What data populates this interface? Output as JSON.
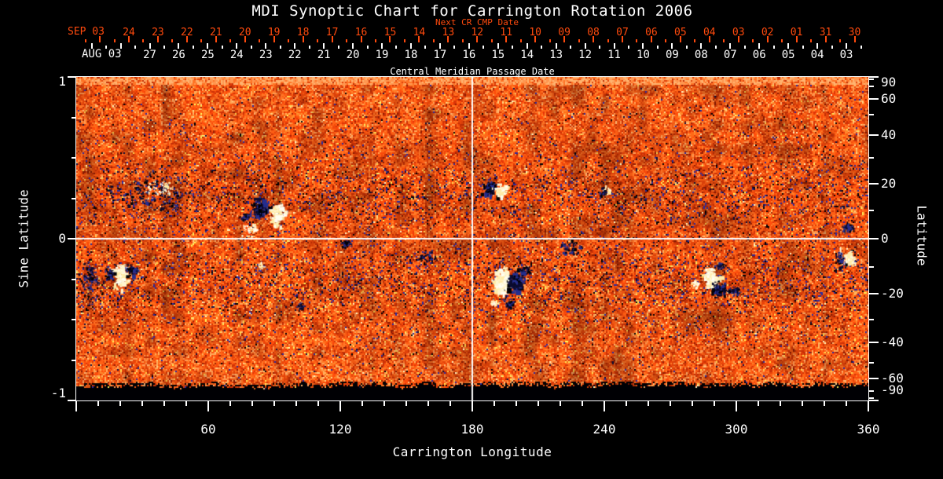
{
  "title": "MDI Synoptic Chart for Carrington Rotation 2006",
  "colors": {
    "background": "#000000",
    "frame": "#ffffff",
    "text": "#ffffff",
    "next_cr_axis": "#ff4a0d",
    "crosshair": "#ffffff"
  },
  "top_axis_next_cr": {
    "title": "Next CR CMP Date",
    "month_label": "SEP 03",
    "days": [
      "24",
      "23",
      "22",
      "21",
      "20",
      "19",
      "18",
      "17",
      "16",
      "15",
      "14",
      "13",
      "12",
      "11",
      "10",
      "09",
      "08",
      "07",
      "06",
      "05",
      "04",
      "03",
      "02",
      "01",
      "31",
      "30"
    ]
  },
  "top_axis_cmp": {
    "title": "Central Meridian Passage Date",
    "month_label": "AUG 03",
    "days": [
      "27",
      "26",
      "25",
      "24",
      "23",
      "22",
      "21",
      "20",
      "19",
      "18",
      "17",
      "16",
      "15",
      "14",
      "13",
      "12",
      "11",
      "10",
      "09",
      "08",
      "07",
      "06",
      "05",
      "04",
      "03"
    ]
  },
  "left_axis": {
    "label": "Sine Latitude",
    "labeled_ticks": [
      {
        "value": 1,
        "label": "1"
      },
      {
        "value": 0,
        "label": "0"
      },
      {
        "value": -1,
        "label": "-1"
      }
    ],
    "minor_tick_values": [
      0.75,
      0.5,
      0.25,
      -0.25,
      -0.5,
      -0.75
    ]
  },
  "right_axis": {
    "label": "Latitude",
    "labeled_ticks": [
      {
        "value": 90,
        "label": "90"
      },
      {
        "value": 60,
        "label": "60"
      },
      {
        "value": 40,
        "label": "40"
      },
      {
        "value": 20,
        "label": "20"
      },
      {
        "value": 0,
        "label": "0"
      },
      {
        "value": -20,
        "label": "-20"
      },
      {
        "value": -40,
        "label": "-40"
      },
      {
        "value": -60,
        "label": "-60"
      },
      {
        "value": -90,
        "label": "-90"
      }
    ],
    "minor_tick_values": [
      80,
      70,
      50,
      30,
      10,
      -10,
      -30,
      -50,
      -70,
      -80
    ]
  },
  "bottom_axis": {
    "label": "Carrington Longitude",
    "labeled_ticks": [
      {
        "value": 60,
        "label": "60"
      },
      {
        "value": 120,
        "label": "120"
      },
      {
        "value": 180,
        "label": "180"
      },
      {
        "value": 240,
        "label": "240"
      },
      {
        "value": 300,
        "label": "300"
      },
      {
        "value": 360,
        "label": "360"
      }
    ],
    "major_tick_step": 60,
    "minor_tick_step": 10
  },
  "chart_data": {
    "type": "heatmap",
    "title": "MDI Synoptic Chart for Carrington Rotation 2006",
    "xlabel": "Carrington Longitude",
    "xlim": [
      0,
      360
    ],
    "ylabel_left": "Sine Latitude",
    "ylim": [
      -1,
      1
    ],
    "ylabel_right": "Latitude",
    "legend": "none",
    "grid": "white crosshair at longitude 180 and sine latitude 0",
    "colormap": "solar magnetogram: orange/red = quiet sun noise, white/cream = strong positive field, navy/black = strong negative field",
    "crosshair": {
      "longitude": 180,
      "sine_latitude": 0
    },
    "south_pole_data_gap_below_sine_latitude": -0.91,
    "palette": {
      "black": "#000004",
      "dark_navy": "#10103c",
      "navy": "#2a2aa0",
      "maroon": "#8c1c02",
      "dark_red": "#c22f06",
      "red": "#e2430a",
      "orange": "#f65b14",
      "bright_orange": "#ff7426",
      "light_orange": "#ff9750",
      "pale_orange": "#ffb470",
      "yellow": "#ffd34e",
      "cream": "#fff3c0"
    },
    "blob_colors": {
      "white": [
        "#fffef2",
        "#fff6d0",
        "#ffeca8"
      ],
      "dark": [
        "#000005",
        "#0b0b30",
        "#252e8e"
      ]
    },
    "active_regions": [
      {
        "name": "ar-south-west",
        "lon": 19.5,
        "sin_lat": -0.22,
        "clusters": [
          {
            "t": "w",
            "dx": 0,
            "dy": 0,
            "n": 48,
            "sx": 7,
            "sy": 14,
            "r": 3.5
          },
          {
            "t": "d",
            "dx": -13,
            "dy": -2,
            "n": 22,
            "sx": 5,
            "sy": 7,
            "r": 2.5
          },
          {
            "t": "d",
            "dx": 16,
            "dy": -6,
            "n": 26,
            "sx": 8,
            "sy": 6,
            "r": 2.5
          }
        ]
      },
      {
        "name": "speck-column-west",
        "lon": 6,
        "sin_lat": -0.25,
        "clusters": [
          {
            "t": "d",
            "dx": 0,
            "dy": 0,
            "n": 50,
            "sx": 12,
            "sy": 28,
            "r": 1.4
          }
        ]
      },
      {
        "name": "plage-north-west",
        "lon": 32,
        "sin_lat": 0.28,
        "clusters": [
          {
            "t": "d",
            "dx": 0,
            "dy": 0,
            "n": 70,
            "sx": 55,
            "sy": 24,
            "r": 1.5
          },
          {
            "t": "w",
            "dx": 15,
            "dy": -8,
            "n": 22,
            "sx": 20,
            "sy": 12,
            "r": 1.7
          }
        ]
      },
      {
        "name": "ar-north-1",
        "lon": 86,
        "sin_lat": 0.17,
        "clusters": [
          {
            "t": "d",
            "dx": -8,
            "dy": -4,
            "n": 60,
            "sx": 9,
            "sy": 11,
            "r": 3.8
          },
          {
            "t": "w",
            "dx": 14,
            "dy": 2,
            "n": 55,
            "sx": 8,
            "sy": 14,
            "r": 3.2
          },
          {
            "t": "w",
            "dx": -18,
            "dy": 22,
            "n": 22,
            "sx": 12,
            "sy": 9,
            "r": 1.6
          },
          {
            "t": "d",
            "dx": -26,
            "dy": 8,
            "n": 14,
            "sx": 7,
            "sy": 5,
            "r": 1.4
          }
        ]
      },
      {
        "name": "specks-equator-1",
        "lon": 122,
        "sin_lat": -0.03,
        "clusters": [
          {
            "t": "d",
            "dx": 0,
            "dy": 0,
            "n": 20,
            "sx": 11,
            "sy": 6,
            "r": 1.5
          }
        ]
      },
      {
        "name": "specks-equator-2",
        "lon": 158,
        "sin_lat": -0.1,
        "clusters": [
          {
            "t": "d",
            "dx": 0,
            "dy": 0,
            "n": 24,
            "sx": 13,
            "sy": 9,
            "r": 1.5
          }
        ]
      },
      {
        "name": "ar-north-2",
        "lon": 190,
        "sin_lat": 0.31,
        "clusters": [
          {
            "t": "d",
            "dx": -7,
            "dy": 0,
            "n": 30,
            "sx": 6,
            "sy": 9,
            "r": 3
          },
          {
            "t": "w",
            "dx": 8,
            "dy": 2,
            "n": 30,
            "sx": 8,
            "sy": 8,
            "r": 2.6
          }
        ]
      },
      {
        "name": "plage-north-3",
        "lon": 241,
        "sin_lat": 0.3,
        "clusters": [
          {
            "t": "w",
            "dx": 0,
            "dy": 0,
            "n": 12,
            "sx": 5,
            "sy": 6,
            "r": 1.8
          },
          {
            "t": "d",
            "dx": -5,
            "dy": 2,
            "n": 9,
            "sx": 4,
            "sy": 5,
            "r": 1.3
          }
        ]
      },
      {
        "name": "ar-south-center",
        "lon": 196,
        "sin_lat": -0.26,
        "clusters": [
          {
            "t": "w",
            "dx": -9,
            "dy": -2,
            "n": 75,
            "sx": 8,
            "sy": 15,
            "r": 4.2
          },
          {
            "t": "d",
            "dx": 9,
            "dy": 2,
            "n": 60,
            "sx": 8,
            "sy": 12,
            "r": 3.6
          },
          {
            "t": "d",
            "dx": 2,
            "dy": 30,
            "n": 22,
            "sx": 8,
            "sy": 8,
            "r": 1.8
          },
          {
            "t": "w",
            "dx": -18,
            "dy": 28,
            "n": 10,
            "sx": 5,
            "sy": 5,
            "r": 1.4
          },
          {
            "t": "d",
            "dx": 22,
            "dy": -14,
            "n": 16,
            "sx": 7,
            "sy": 6,
            "r": 1.5
          }
        ]
      },
      {
        "name": "specks-south-center",
        "lon": 224,
        "sin_lat": -0.05,
        "clusters": [
          {
            "t": "d",
            "dx": 0,
            "dy": 0,
            "n": 28,
            "sx": 15,
            "sy": 12,
            "r": 1.5
          }
        ]
      },
      {
        "name": "ar-south-east",
        "lon": 289,
        "sin_lat": -0.26,
        "clusters": [
          {
            "t": "w",
            "dx": -3,
            "dy": -5,
            "n": 62,
            "sx": 7,
            "sy": 13,
            "r": 3.8
          },
          {
            "t": "d",
            "dx": 7,
            "dy": 9,
            "n": 38,
            "sx": 9,
            "sy": 6,
            "r": 2.8
          },
          {
            "t": "w",
            "dx": -21,
            "dy": 4,
            "n": 10,
            "sx": 4,
            "sy": 4,
            "r": 1.5
          },
          {
            "t": "d",
            "dx": 27,
            "dy": 12,
            "n": 26,
            "sx": 11,
            "sy": 7,
            "r": 1.6
          },
          {
            "t": "d",
            "dx": 11,
            "dy": -20,
            "n": 14,
            "sx": 6,
            "sy": 4,
            "r": 1.4
          }
        ]
      },
      {
        "name": "ar-east-limb",
        "lon": 351,
        "sin_lat": -0.12,
        "clusters": [
          {
            "t": "w",
            "dx": 0,
            "dy": 0,
            "n": 36,
            "sx": 6,
            "sy": 8,
            "r": 3.4
          },
          {
            "t": "d",
            "dx": -11,
            "dy": 1,
            "n": 18,
            "sx": 4,
            "sy": 7,
            "r": 1.7
          }
        ]
      },
      {
        "name": "specks-north-east",
        "lon": 350.5,
        "sin_lat": 0.075,
        "clusters": [
          {
            "t": "d",
            "dx": 0,
            "dy": 0,
            "n": 20,
            "sx": 6,
            "sy": 6,
            "r": 2.2
          }
        ]
      },
      {
        "name": "fleck-south-1",
        "lon": 84,
        "sin_lat": -0.17,
        "clusters": [
          {
            "t": "w",
            "dx": 0,
            "dy": 0,
            "n": 6,
            "sx": 3,
            "sy": 4,
            "r": 1.4
          }
        ]
      },
      {
        "name": "specks-south-west-2",
        "lon": 102,
        "sin_lat": -0.42,
        "clusters": [
          {
            "t": "d",
            "dx": 0,
            "dy": 0,
            "n": 14,
            "sx": 9,
            "sy": 7,
            "r": 1.3
          }
        ]
      }
    ]
  }
}
